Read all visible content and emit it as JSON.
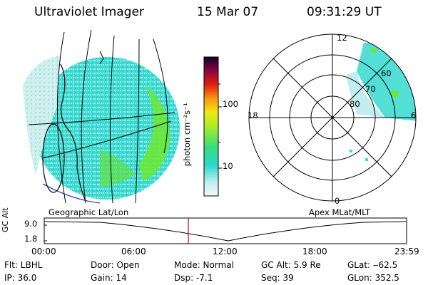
{
  "header": {
    "instrument": "Ultraviolet Imager",
    "date": "15 Mar 07",
    "time": "09:31:29 UT"
  },
  "colorbar": {
    "unit_label": "photon cm⁻²s⁻¹",
    "ticks": [
      "100",
      "10"
    ]
  },
  "left_panel": {
    "label": "Geographic Lat/Lon"
  },
  "right_panel": {
    "label": "Apex MLat/MLT",
    "mlt_labels": {
      "top": "12",
      "left": "18",
      "right": "6",
      "bottom": "0"
    },
    "mlat_labels": [
      "60",
      "70",
      "80"
    ]
  },
  "altitude_plot": {
    "ylabel": "GC Alt",
    "yticks": [
      "9.0",
      "1.8"
    ],
    "xticks": [
      "00:00",
      "06:00",
      "12:00",
      "18:00",
      "23:59"
    ],
    "current_time_marker": "09:31:29"
  },
  "info": {
    "flt": "Flt: LBHL",
    "ip": "IP: 36.0",
    "door": "Door: Open",
    "gain": "Gain: 14",
    "mode": "Mode: Normal",
    "dsp": "Dsp:    -7.1",
    "gc_alt": "GC Alt: 5.9 Re",
    "seq": "Seq: 39",
    "glat": "GLat: ‒62.5",
    "glon": "GLon: 352.5"
  },
  "colors": {
    "cyan": "#29d8d0",
    "light_cyan": "#b8ecec",
    "green": "#6fe830",
    "marker": "#cc0000",
    "coastline": "#1a1aaa"
  }
}
